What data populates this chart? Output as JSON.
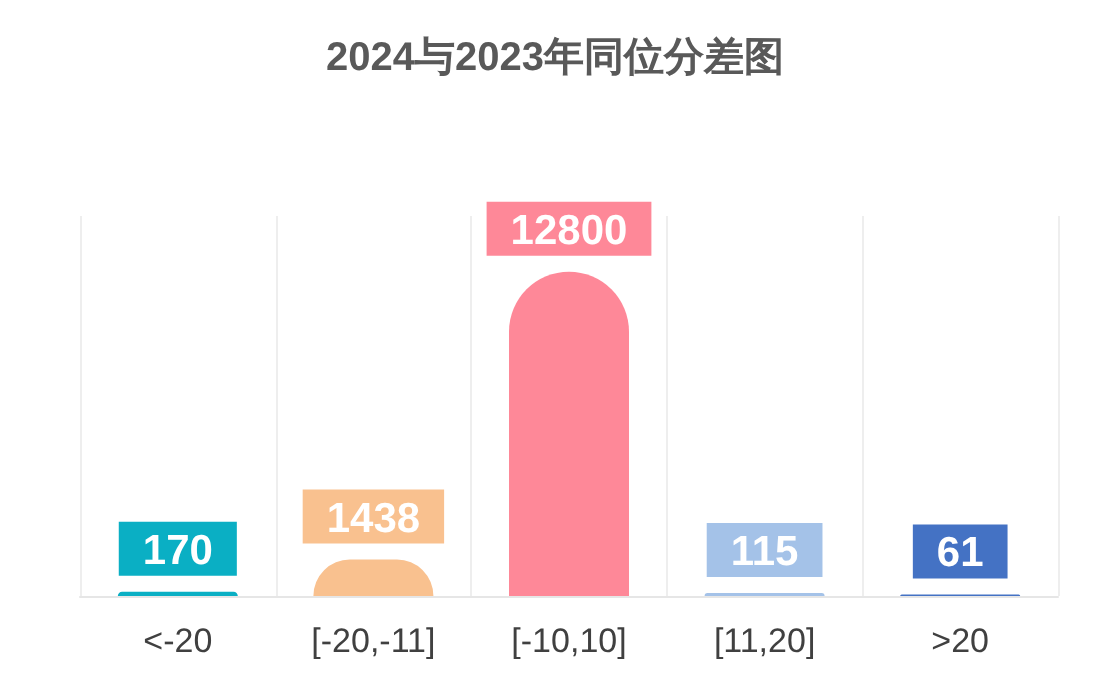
{
  "chart_data": {
    "type": "bar",
    "title": "2024与2023年同位分差图",
    "categories": [
      "<-20",
      "[-20,-11]",
      "[-10,10]",
      "[11,20]",
      ">20"
    ],
    "values": [
      170,
      1438,
      12800,
      115,
      61
    ],
    "colors": [
      "#0aafc4",
      "#f9c18f",
      "#fe8898",
      "#a4c2e8",
      "#4472c4"
    ],
    "data_labels": true,
    "grid": "x"
  }
}
